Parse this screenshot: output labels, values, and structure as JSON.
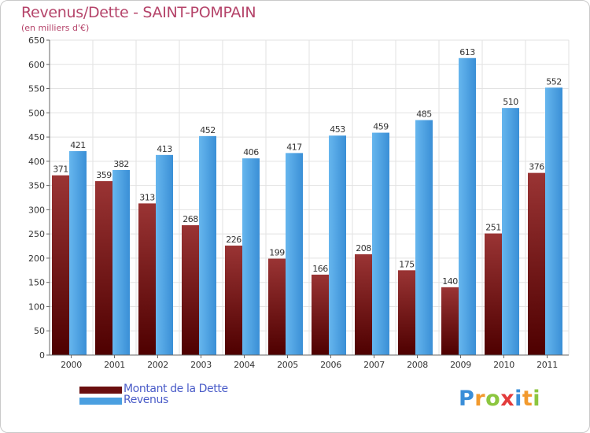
{
  "header": {
    "title": "Revenus/Dette - SAINT-POMPAIN",
    "subtitle": "(en milliers d'€)"
  },
  "chart_data": {
    "type": "bar",
    "title": "Revenus/Dette - SAINT-POMPAIN",
    "subtitle": "(en milliers d'€)",
    "categories": [
      "2000",
      "2001",
      "2002",
      "2003",
      "2004",
      "2005",
      "2006",
      "2007",
      "2008",
      "2009",
      "2010",
      "2011"
    ],
    "series": [
      {
        "name": "Montant de la Dette",
        "values": [
          371,
          359,
          313,
          268,
          226,
          199,
          166,
          208,
          175,
          140,
          251,
          376
        ],
        "color": "#7a1a1a"
      },
      {
        "name": "Revenus",
        "values": [
          421,
          382,
          413,
          452,
          406,
          417,
          453,
          459,
          485,
          613,
          510,
          552
        ],
        "color": "#4a9fe0"
      }
    ],
    "yticks": [
      0,
      50,
      100,
      150,
      200,
      250,
      300,
      350,
      400,
      450,
      500,
      550,
      600,
      650
    ],
    "ylim": [
      0,
      650
    ],
    "grid": true,
    "legend_position": "bottom-left"
  },
  "legend": {
    "items": [
      {
        "label": "Montant de la Dette",
        "color": "#6a0e0e"
      },
      {
        "label": "Revenus",
        "color": "#4a9fe0"
      }
    ]
  },
  "logo": {
    "letters": [
      "P",
      "r",
      "o",
      "x",
      "i",
      "t",
      "i"
    ],
    "colors": [
      "#3a8ed8",
      "#f29a2e",
      "#8cc63f",
      "#e33b3b",
      "#3a8ed8",
      "#f29a2e",
      "#8cc63f"
    ]
  }
}
